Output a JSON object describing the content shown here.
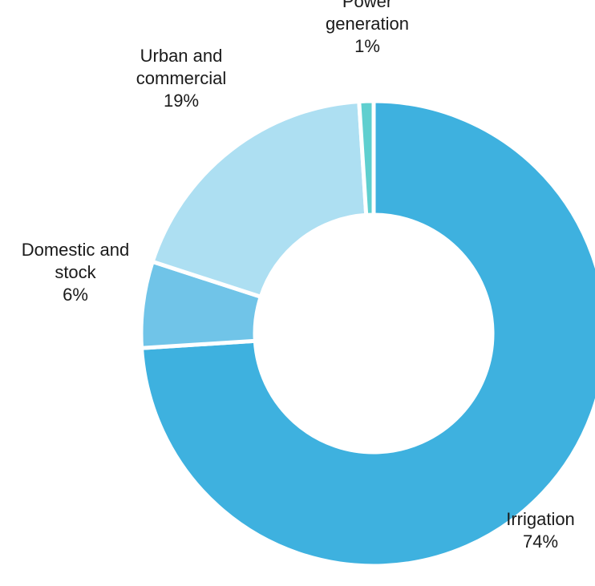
{
  "chart_data": {
    "type": "pie",
    "variant": "donut",
    "title": "",
    "unit": "%",
    "slices": [
      {
        "label_lines": [
          "Irrigation"
        ],
        "value": 74,
        "value_label": "74%",
        "color": "#3eb1df"
      },
      {
        "label_lines": [
          "Domestic and",
          "stock"
        ],
        "value": 6,
        "value_label": "6%",
        "color": "#70c4e8"
      },
      {
        "label_lines": [
          "Urban and",
          "commercial"
        ],
        "value": 19,
        "value_label": "19%",
        "color": "#addff2"
      },
      {
        "label_lines": [
          "Power",
          "generation"
        ],
        "value": 1,
        "value_label": "1%",
        "color": "#5fcfcf"
      }
    ],
    "legend": "none",
    "grid": false
  }
}
